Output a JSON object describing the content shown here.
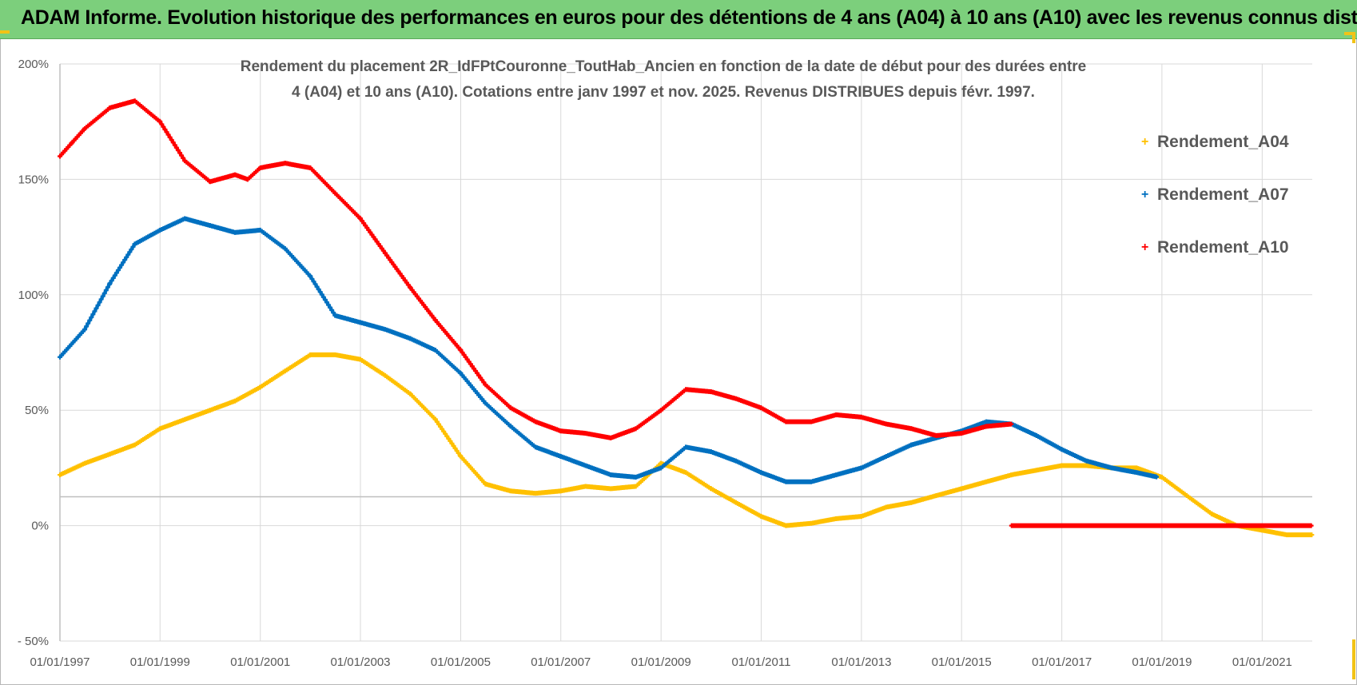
{
  "banner": {
    "title": "ADAM Informe. Evolution historique des performances en euros pour des détentions de 4 ans (A04) à 10 ans (A10) avec les revenus connus distribués"
  },
  "colors": {
    "banner_bg": "#7ccf7c",
    "corner_accent": "#f2c316",
    "grid": "#d9d9d9",
    "axis": "#bfbfbf",
    "text": "#595959"
  },
  "chart_data": {
    "type": "scatter",
    "title": "Rendement du placement 2R_IdFPtCouronne_ToutHab_Ancien en fonction de la date de début pour des durées entre 4 (A04) et 10 ans (A10). Cotations entre janv 1997 et nov. 2025. Revenus DISTRIBUES depuis févr. 1997.",
    "xlabel": "",
    "ylabel": "",
    "x_range": [
      "1997-01-01",
      "2022-01-01"
    ],
    "ylim": [
      -0.5,
      2.0
    ],
    "y_ticks": [
      -0.5,
      0,
      0.5,
      1.0,
      1.5,
      2.0
    ],
    "y_tick_labels": [
      "- 50%",
      "0%",
      "50%",
      "100%",
      "150%",
      "200%"
    ],
    "x_ticks": [
      "1997-01-01",
      "1999-01-01",
      "2001-01-01",
      "2003-01-01",
      "2005-01-01",
      "2007-01-01",
      "2009-01-01",
      "2011-01-01",
      "2013-01-01",
      "2015-01-01",
      "2017-01-01",
      "2019-01-01",
      "2021-01-01"
    ],
    "x_tick_labels": [
      "01/01/1997",
      "01/01/1999",
      "01/01/2001",
      "01/01/2003",
      "01/01/2005",
      "01/01/2007",
      "01/01/2009",
      "01/01/2011",
      "01/01/2013",
      "01/01/2015",
      "01/01/2017",
      "01/01/2019",
      "01/01/2021"
    ],
    "grid": true,
    "legend_position": "right",
    "series": [
      {
        "name": "Rendement_A04",
        "color": "#ffc000",
        "points": [
          [
            "1997-01-01",
            0.22
          ],
          [
            "1997-07-01",
            0.27
          ],
          [
            "1998-01-01",
            0.31
          ],
          [
            "1998-07-01",
            0.35
          ],
          [
            "1999-01-01",
            0.42
          ],
          [
            "1999-07-01",
            0.46
          ],
          [
            "2000-01-01",
            0.5
          ],
          [
            "2000-07-01",
            0.54
          ],
          [
            "2001-01-01",
            0.6
          ],
          [
            "2001-07-01",
            0.67
          ],
          [
            "2002-01-01",
            0.74
          ],
          [
            "2002-07-01",
            0.74
          ],
          [
            "2003-01-01",
            0.72
          ],
          [
            "2003-07-01",
            0.65
          ],
          [
            "2004-01-01",
            0.57
          ],
          [
            "2004-07-01",
            0.46
          ],
          [
            "2005-01-01",
            0.3
          ],
          [
            "2005-07-01",
            0.18
          ],
          [
            "2006-01-01",
            0.15
          ],
          [
            "2006-07-01",
            0.14
          ],
          [
            "2007-01-01",
            0.15
          ],
          [
            "2007-07-01",
            0.17
          ],
          [
            "2008-01-01",
            0.16
          ],
          [
            "2008-07-01",
            0.17
          ],
          [
            "2009-01-01",
            0.27
          ],
          [
            "2009-07-01",
            0.23
          ],
          [
            "2010-01-01",
            0.16
          ],
          [
            "2010-07-01",
            0.1
          ],
          [
            "2011-01-01",
            0.04
          ],
          [
            "2011-07-01",
            0.0
          ],
          [
            "2012-01-01",
            0.01
          ],
          [
            "2012-07-01",
            0.03
          ],
          [
            "2013-01-01",
            0.04
          ],
          [
            "2013-07-01",
            0.08
          ],
          [
            "2014-01-01",
            0.1
          ],
          [
            "2014-07-01",
            0.13
          ],
          [
            "2015-01-01",
            0.16
          ],
          [
            "2015-07-01",
            0.19
          ],
          [
            "2016-01-01",
            0.22
          ],
          [
            "2016-07-01",
            0.24
          ],
          [
            "2017-01-01",
            0.26
          ],
          [
            "2017-07-01",
            0.26
          ],
          [
            "2018-01-01",
            0.25
          ],
          [
            "2018-07-01",
            0.25
          ],
          [
            "2019-01-01",
            0.21
          ],
          [
            "2019-07-01",
            0.13
          ],
          [
            "2020-01-01",
            0.05
          ],
          [
            "2020-07-01",
            0.0
          ],
          [
            "2021-01-01",
            -0.02
          ],
          [
            "2021-07-01",
            -0.04
          ],
          [
            "2022-01-01",
            -0.04
          ]
        ]
      },
      {
        "name": "Rendement_A07",
        "color": "#0070c0",
        "points": [
          [
            "1997-01-01",
            0.73
          ],
          [
            "1997-07-01",
            0.85
          ],
          [
            "1998-01-01",
            1.05
          ],
          [
            "1998-07-01",
            1.22
          ],
          [
            "1999-01-01",
            1.28
          ],
          [
            "1999-07-01",
            1.33
          ],
          [
            "2000-01-01",
            1.3
          ],
          [
            "2000-07-01",
            1.27
          ],
          [
            "2001-01-01",
            1.28
          ],
          [
            "2001-07-01",
            1.2
          ],
          [
            "2002-01-01",
            1.08
          ],
          [
            "2002-07-01",
            0.91
          ],
          [
            "2003-01-01",
            0.88
          ],
          [
            "2003-07-01",
            0.85
          ],
          [
            "2004-01-01",
            0.81
          ],
          [
            "2004-07-01",
            0.76
          ],
          [
            "2005-01-01",
            0.66
          ],
          [
            "2005-07-01",
            0.53
          ],
          [
            "2006-01-01",
            0.43
          ],
          [
            "2006-07-01",
            0.34
          ],
          [
            "2007-01-01",
            0.3
          ],
          [
            "2007-07-01",
            0.26
          ],
          [
            "2008-01-01",
            0.22
          ],
          [
            "2008-07-01",
            0.21
          ],
          [
            "2009-01-01",
            0.25
          ],
          [
            "2009-07-01",
            0.34
          ],
          [
            "2010-01-01",
            0.32
          ],
          [
            "2010-07-01",
            0.28
          ],
          [
            "2011-01-01",
            0.23
          ],
          [
            "2011-07-01",
            0.19
          ],
          [
            "2012-01-01",
            0.19
          ],
          [
            "2012-07-01",
            0.22
          ],
          [
            "2013-01-01",
            0.25
          ],
          [
            "2013-07-01",
            0.3
          ],
          [
            "2014-01-01",
            0.35
          ],
          [
            "2014-07-01",
            0.38
          ],
          [
            "2015-01-01",
            0.41
          ],
          [
            "2015-07-01",
            0.45
          ],
          [
            "2016-01-01",
            0.44
          ],
          [
            "2016-07-01",
            0.39
          ],
          [
            "2017-01-01",
            0.33
          ],
          [
            "2017-07-01",
            0.28
          ],
          [
            "2018-01-01",
            0.25
          ],
          [
            "2018-07-01",
            0.23
          ],
          [
            "2018-12-01",
            0.21
          ]
        ]
      },
      {
        "name": "Rendement_A10",
        "color": "#ff0000",
        "points": [
          [
            "1997-01-01",
            1.6
          ],
          [
            "1997-04-01",
            1.66
          ],
          [
            "1997-07-01",
            1.72
          ],
          [
            "1998-01-01",
            1.81
          ],
          [
            "1998-07-01",
            1.84
          ],
          [
            "1999-01-01",
            1.75
          ],
          [
            "1999-07-01",
            1.58
          ],
          [
            "2000-01-01",
            1.49
          ],
          [
            "2000-07-01",
            1.52
          ],
          [
            "2000-10-01",
            1.5
          ],
          [
            "2001-01-01",
            1.55
          ],
          [
            "2001-07-01",
            1.57
          ],
          [
            "2002-01-01",
            1.55
          ],
          [
            "2002-07-01",
            1.44
          ],
          [
            "2003-01-01",
            1.33
          ],
          [
            "2003-07-01",
            1.18
          ],
          [
            "2004-01-01",
            1.03
          ],
          [
            "2004-07-01",
            0.89
          ],
          [
            "2005-01-01",
            0.76
          ],
          [
            "2005-07-01",
            0.61
          ],
          [
            "2006-01-01",
            0.51
          ],
          [
            "2006-07-01",
            0.45
          ],
          [
            "2007-01-01",
            0.41
          ],
          [
            "2007-07-01",
            0.4
          ],
          [
            "2008-01-01",
            0.38
          ],
          [
            "2008-07-01",
            0.42
          ],
          [
            "2009-01-01",
            0.5
          ],
          [
            "2009-07-01",
            0.59
          ],
          [
            "2010-01-01",
            0.58
          ],
          [
            "2010-07-01",
            0.55
          ],
          [
            "2011-01-01",
            0.51
          ],
          [
            "2011-07-01",
            0.45
          ],
          [
            "2012-01-01",
            0.45
          ],
          [
            "2012-07-01",
            0.48
          ],
          [
            "2013-01-01",
            0.47
          ],
          [
            "2013-07-01",
            0.44
          ],
          [
            "2014-01-01",
            0.42
          ],
          [
            "2014-07-01",
            0.39
          ],
          [
            "2015-01-01",
            0.4
          ],
          [
            "2015-07-01",
            0.43
          ],
          [
            "2016-01-01",
            0.44
          ]
        ],
        "flat_segment": {
          "from": "2016-01-01",
          "to": "2022-01-01",
          "value": 0.0
        }
      }
    ]
  }
}
